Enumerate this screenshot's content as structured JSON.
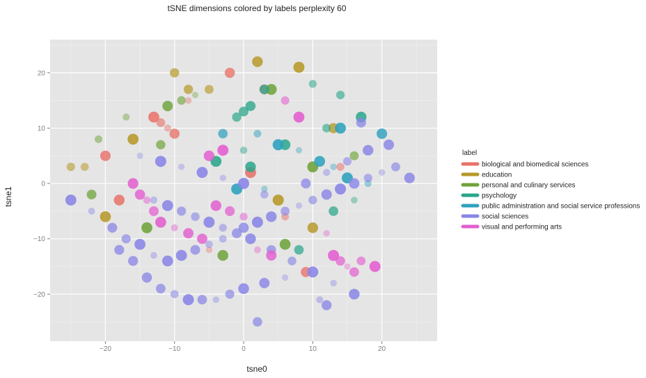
{
  "chart_data": {
    "type": "scatter",
    "title": "tSNE dimensions colored by labels perplexity 60",
    "xlabel": "tsne0",
    "ylabel": "tsne1",
    "xlim": [
      -28,
      28
    ],
    "ylim": [
      -28.5,
      26
    ],
    "x_ticks": [
      -20,
      -10,
      0,
      10,
      20
    ],
    "y_ticks": [
      -20,
      -10,
      0,
      10,
      20
    ],
    "x_tick_labels": [
      "−20",
      "−10",
      "0",
      "10",
      "20"
    ],
    "y_tick_labels": [
      "−20",
      "−10",
      "0",
      "10",
      "20"
    ],
    "grid": true,
    "legend": {
      "title": "label",
      "position": "right",
      "entries": [
        {
          "name": "biological and biomedical sciences",
          "color": "#e8736b"
        },
        {
          "name": "education",
          "color": "#b7992a"
        },
        {
          "name": "personal and culinary services",
          "color": "#6fa33a"
        },
        {
          "name": "psychology",
          "color": "#2aa68b"
        },
        {
          "name": "public administration and social service professions",
          "color": "#2fa2be"
        },
        {
          "name": "social sciences",
          "color": "#8a86e6"
        },
        {
          "name": "visual and performing arts",
          "color": "#e35fd0"
        }
      ]
    },
    "series": [
      {
        "name": "biological and biomedical sciences",
        "color": "#e8736b",
        "x": [
          -13,
          -12,
          -11,
          -10,
          -8,
          -2,
          3,
          6,
          -18,
          -20,
          9,
          14,
          -5,
          1
        ],
        "y": [
          12,
          11,
          10,
          9,
          15,
          20,
          17,
          -6,
          -3,
          5,
          -16,
          3,
          -12,
          2
        ]
      },
      {
        "name": "education",
        "color": "#b7992a",
        "x": [
          -25,
          -23,
          -10,
          -8,
          -5,
          2,
          8,
          13,
          -16,
          5,
          -20,
          10
        ],
        "y": [
          3,
          3,
          20,
          17,
          17,
          22,
          21,
          10,
          8,
          -3,
          -6,
          -8
        ]
      },
      {
        "name": "personal and culinary services",
        "color": "#6fa33a",
        "x": [
          -11,
          -9,
          -7,
          -21,
          -17,
          -14,
          4,
          10,
          -22,
          16,
          6,
          -3,
          -12
        ],
        "y": [
          14,
          15,
          16,
          8,
          12,
          -8,
          17,
          3,
          -2,
          5,
          -11,
          -13,
          7
        ]
      },
      {
        "name": "psychology",
        "color": "#2aa68b",
        "x": [
          -1,
          0,
          1,
          3,
          10,
          12,
          14,
          17,
          1,
          0,
          6,
          8,
          -4,
          13,
          16
        ],
        "y": [
          12,
          13,
          14,
          17,
          18,
          10,
          16,
          12,
          3,
          6,
          7,
          -12,
          4,
          -5,
          -3
        ]
      },
      {
        "name": "public administration and social service professions",
        "color": "#2fa2be",
        "x": [
          -3,
          2,
          5,
          8,
          11,
          13,
          15,
          20,
          3,
          -1,
          14,
          18
        ],
        "y": [
          9,
          9,
          7,
          6,
          4,
          3,
          1,
          9,
          -1,
          -1,
          10,
          0
        ]
      },
      {
        "name": "social sciences",
        "color": "#8a86e6",
        "x": [
          -25,
          -22,
          -19,
          -17,
          -15,
          -13,
          -11,
          -9,
          -7,
          -5,
          -3,
          -1,
          0,
          2,
          4,
          6,
          8,
          10,
          12,
          14,
          16,
          18,
          20,
          22,
          24,
          -18,
          -16,
          -14,
          -12,
          -10,
          -8,
          -6,
          -4,
          -2,
          0,
          3,
          6,
          9,
          12,
          15,
          18,
          -13,
          -11,
          -9,
          -7,
          -5,
          -3,
          1,
          4,
          7,
          10,
          13,
          16,
          -15,
          -12,
          -9,
          -6,
          -3,
          0,
          3,
          2,
          11,
          12,
          21,
          17
        ],
        "y": [
          -3,
          -5,
          -8,
          -10,
          -11,
          -13,
          -14,
          -13,
          -12,
          -11,
          -10,
          -9,
          -8,
          -7,
          -6,
          -5,
          -4,
          -3,
          -2,
          -1,
          0,
          1,
          2,
          3,
          1,
          -12,
          -14,
          -17,
          -19,
          -20,
          -21,
          -21,
          -21,
          -20,
          -19,
          -18,
          -17,
          0,
          2,
          4,
          6,
          -3,
          -4,
          -5,
          -6,
          -7,
          -8,
          -10,
          -12,
          -14,
          -16,
          -18,
          -20,
          5,
          4,
          3,
          2,
          1,
          0,
          -2,
          -25,
          -21,
          -22,
          7,
          11
        ]
      },
      {
        "name": "visual and performing arts",
        "color": "#e35fd0",
        "x": [
          -14,
          -13,
          -12,
          -10,
          -8,
          -6,
          -4,
          -2,
          0,
          2,
          4,
          -16,
          -15,
          14,
          15,
          16,
          17,
          13,
          -5,
          -3,
          6,
          8,
          12,
          19
        ],
        "y": [
          -3,
          -5,
          -7,
          -8,
          -9,
          -10,
          -4,
          -5,
          -6,
          -12,
          -13,
          0,
          -2,
          -14,
          -15,
          -16,
          -14,
          -13,
          5,
          6,
          15,
          12,
          -9,
          -15
        ]
      }
    ]
  }
}
